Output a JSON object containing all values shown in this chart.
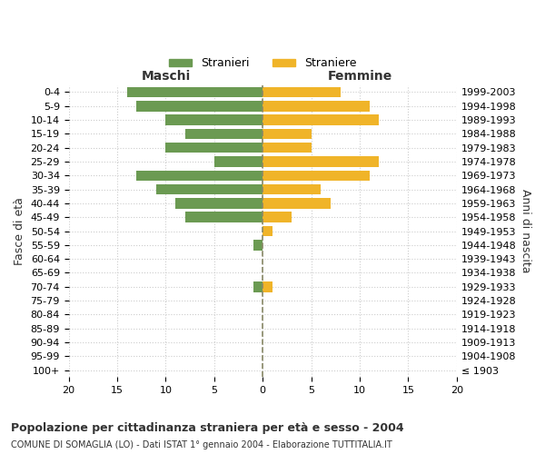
{
  "age_groups": [
    "100+",
    "95-99",
    "90-94",
    "85-89",
    "80-84",
    "75-79",
    "70-74",
    "65-69",
    "60-64",
    "55-59",
    "50-54",
    "45-49",
    "40-44",
    "35-39",
    "30-34",
    "25-29",
    "20-24",
    "15-19",
    "10-14",
    "5-9",
    "0-4"
  ],
  "birth_years": [
    "≤ 1903",
    "1904-1908",
    "1909-1913",
    "1914-1918",
    "1919-1923",
    "1924-1928",
    "1929-1933",
    "1934-1938",
    "1939-1943",
    "1944-1948",
    "1949-1953",
    "1954-1958",
    "1959-1963",
    "1964-1968",
    "1969-1973",
    "1974-1978",
    "1979-1983",
    "1984-1988",
    "1989-1993",
    "1994-1998",
    "1999-2003"
  ],
  "males": [
    0,
    0,
    0,
    0,
    0,
    0,
    1,
    0,
    0,
    1,
    0,
    8,
    9,
    11,
    13,
    5,
    10,
    8,
    10,
    13,
    14
  ],
  "females": [
    0,
    0,
    0,
    0,
    0,
    0,
    1,
    0,
    0,
    0,
    1,
    3,
    7,
    6,
    11,
    12,
    5,
    5,
    12,
    11,
    8
  ],
  "male_color": "#6b9a52",
  "female_color": "#f0b429",
  "bar_height": 0.75,
  "xlim": [
    -20,
    20
  ],
  "xticks": [
    -20,
    -15,
    -10,
    -5,
    0,
    5,
    10,
    15,
    20
  ],
  "xticklabels": [
    "20",
    "15",
    "10",
    "5",
    "0",
    "5",
    "10",
    "15",
    "20"
  ],
  "title": "Popolazione per cittadinanza straniera per età e sesso - 2004",
  "subtitle": "COMUNE DI SOMAGLIA (LO) - Dati ISTAT 1° gennaio 2004 - Elaborazione TUTTITALIA.IT",
  "ylabel_left": "Fasce di età",
  "ylabel_right": "Anni di nascita",
  "maschi_label": "Maschi",
  "femmine_label": "Femmine",
  "legend_stranieri": "Stranieri",
  "legend_straniere": "Straniere",
  "bg_color": "#ffffff",
  "grid_color": "#cccccc",
  "vline_color": "#888866",
  "text_color": "#333333"
}
